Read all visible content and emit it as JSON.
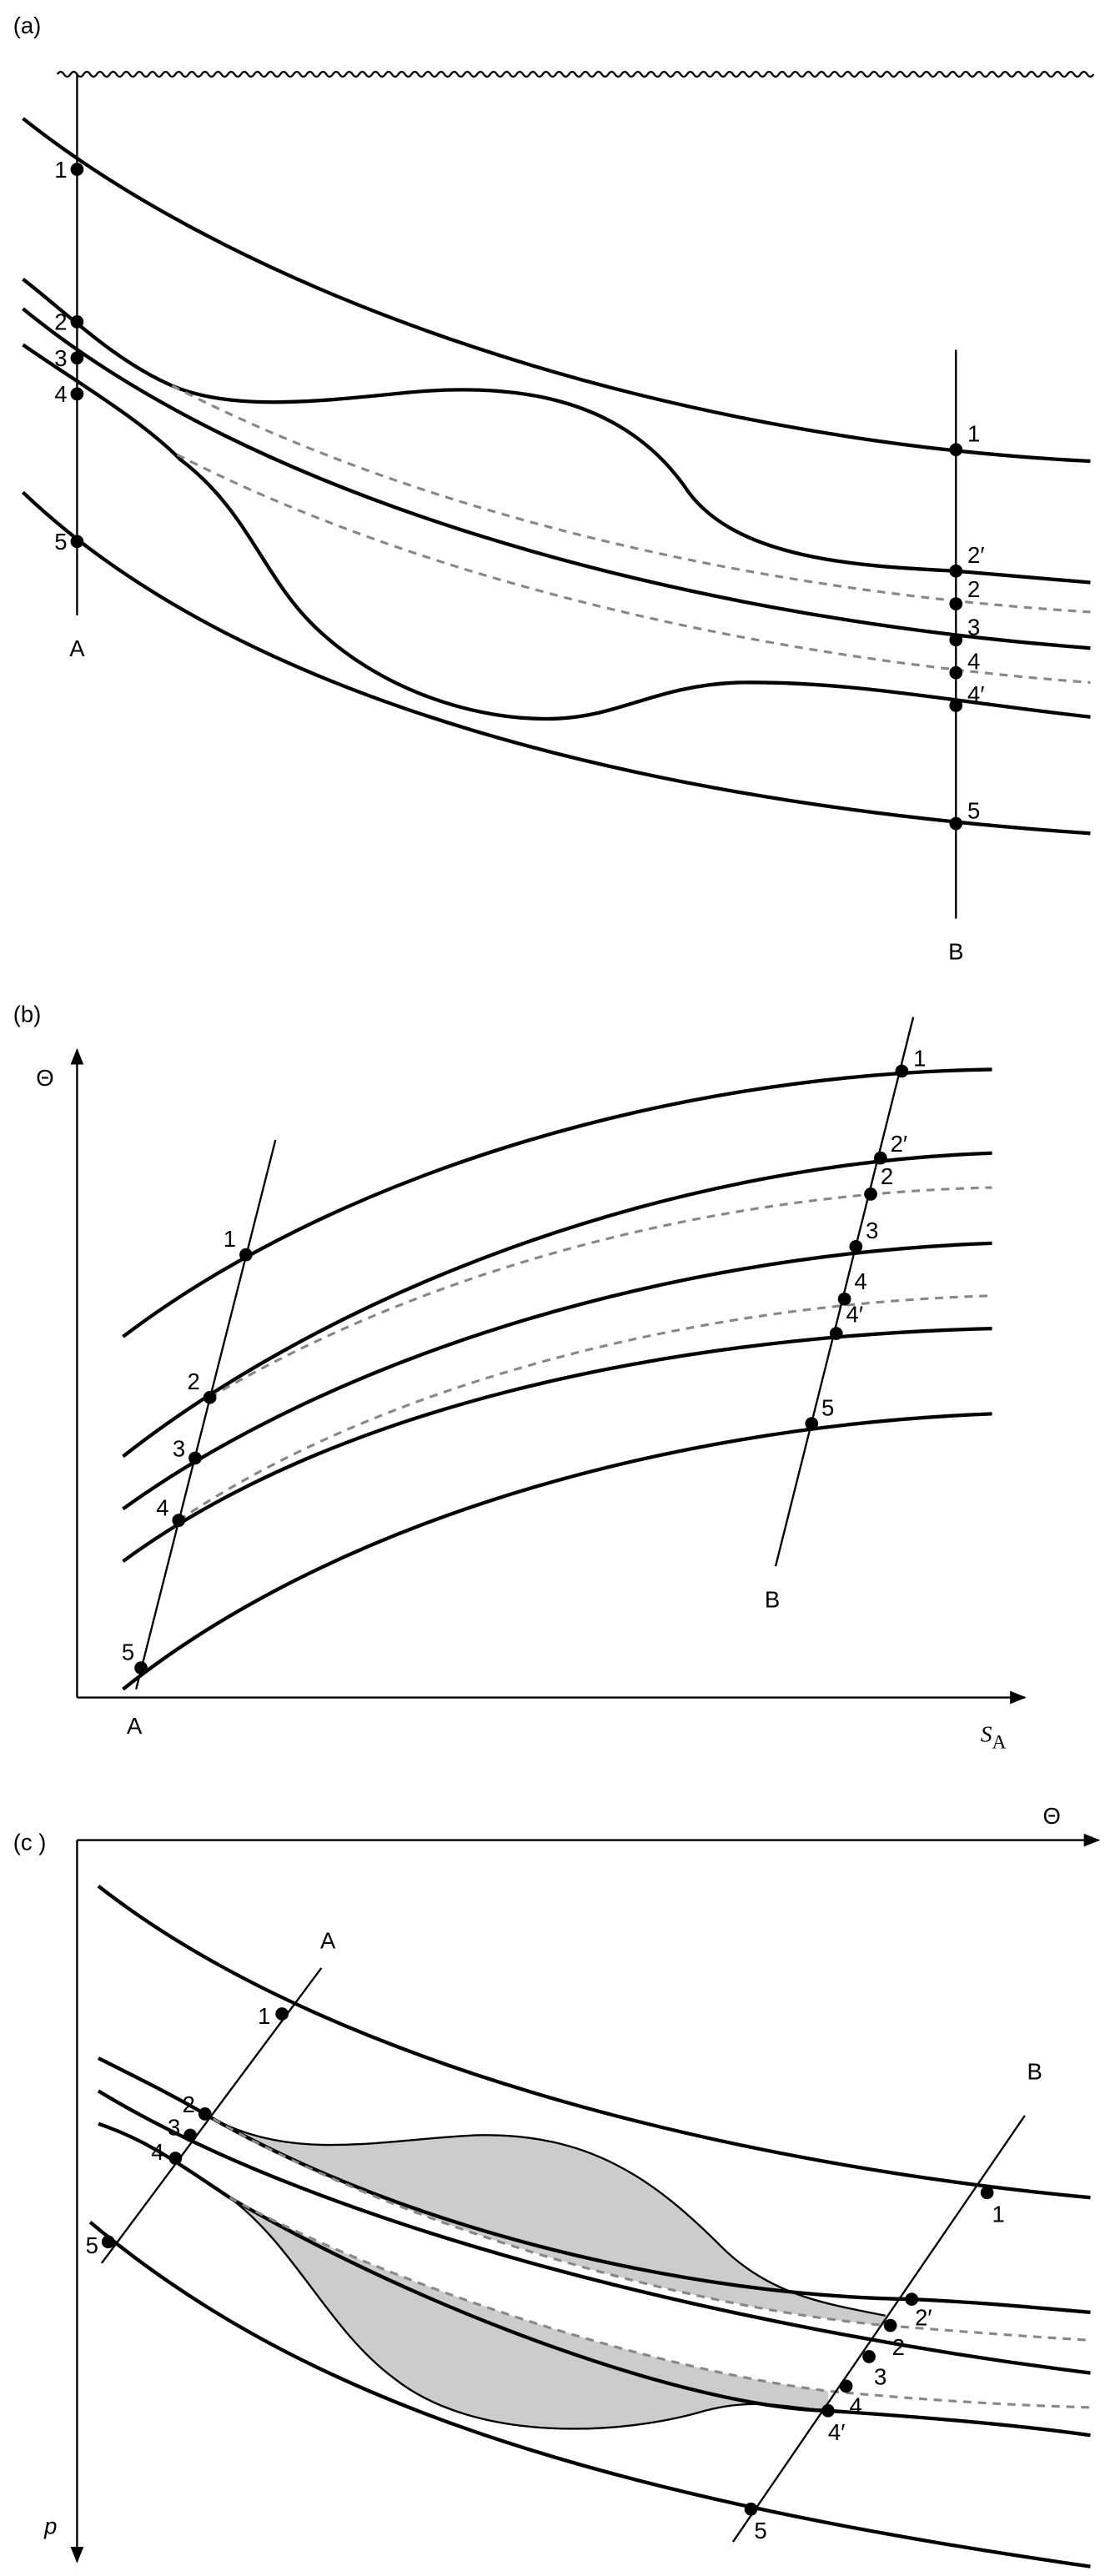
{
  "panel_a": {
    "label": "(a)",
    "line_a": {
      "label": "A",
      "points": [
        "1",
        "2",
        "3",
        "4",
        "5"
      ]
    },
    "line_b": {
      "label": "B",
      "points": [
        "1",
        "2′",
        "2",
        "3",
        "4",
        "4′",
        "5"
      ]
    }
  },
  "panel_b": {
    "label": "(b)",
    "y_axis": "Θ",
    "x_axis": {
      "symbol": "S",
      "subscript": "A"
    },
    "line_a": {
      "label": "A",
      "points": [
        "1",
        "2",
        "3",
        "4",
        "5"
      ]
    },
    "line_b": {
      "label": "B",
      "points": [
        "1",
        "2′",
        "2",
        "3",
        "4",
        "4′",
        "5"
      ]
    }
  },
  "panel_c": {
    "label": "(c )",
    "x_axis": "Θ",
    "y_axis": "p",
    "line_a": {
      "label": "A",
      "points": [
        "1",
        "2",
        "3",
        "4",
        "5"
      ]
    },
    "line_b": {
      "label": "B",
      "points": [
        "1",
        "2′",
        "2",
        "3",
        "4",
        "4′",
        "5"
      ]
    }
  }
}
